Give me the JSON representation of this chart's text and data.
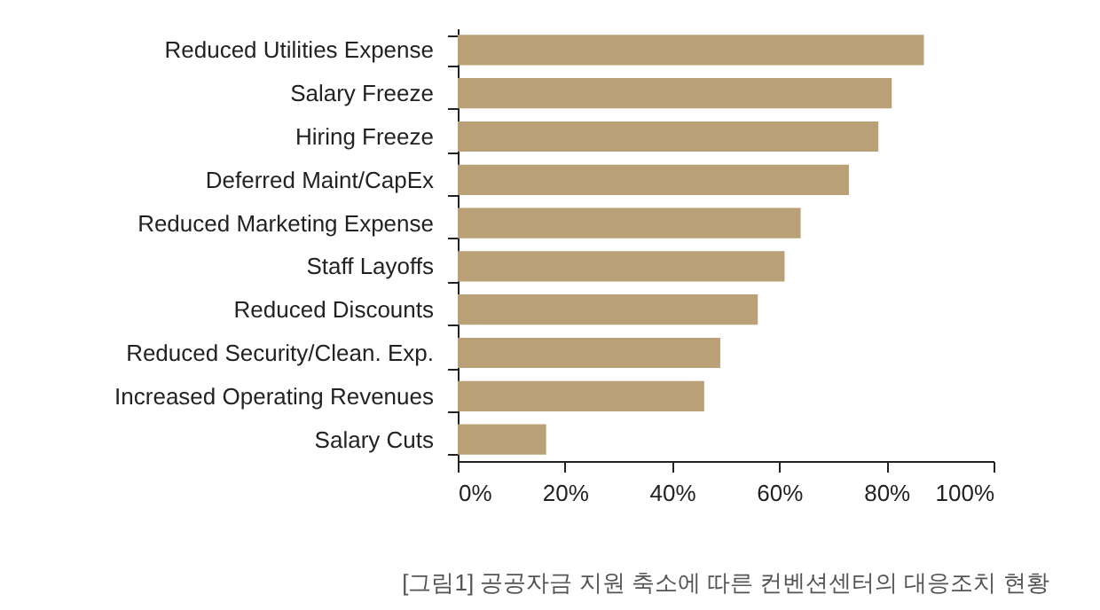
{
  "chart_data": {
    "type": "bar",
    "orientation": "horizontal",
    "categories": [
      "Reduced Utilities Expense",
      "Salary Freeze",
      "Hiring Freeze",
      "Deferred Maint/CapEx",
      "Reduced Marketing Expense",
      "Staff Layoffs",
      "Reduced Discounts",
      "Reduced Security/Clean. Exp.",
      "Increased Operating Revenues",
      "Salary Cuts"
    ],
    "values": [
      87,
      81,
      78.5,
      73,
      64,
      61,
      56,
      49,
      46,
      16.5
    ],
    "color": "#b9a077",
    "xlim": [
      0,
      100
    ],
    "xticks": [
      {
        "value": 0,
        "label": "0%"
      },
      {
        "value": 20,
        "label": "20%"
      },
      {
        "value": 40,
        "label": "40%"
      },
      {
        "value": 60,
        "label": "60%"
      },
      {
        "value": 80,
        "label": "80%"
      },
      {
        "value": 100,
        "label": "100%"
      }
    ],
    "grid": false,
    "annotations": [
      "[그림1] 공공자금 지원 축소에 따른 컨벤션센터의 대응조치 현황"
    ]
  }
}
